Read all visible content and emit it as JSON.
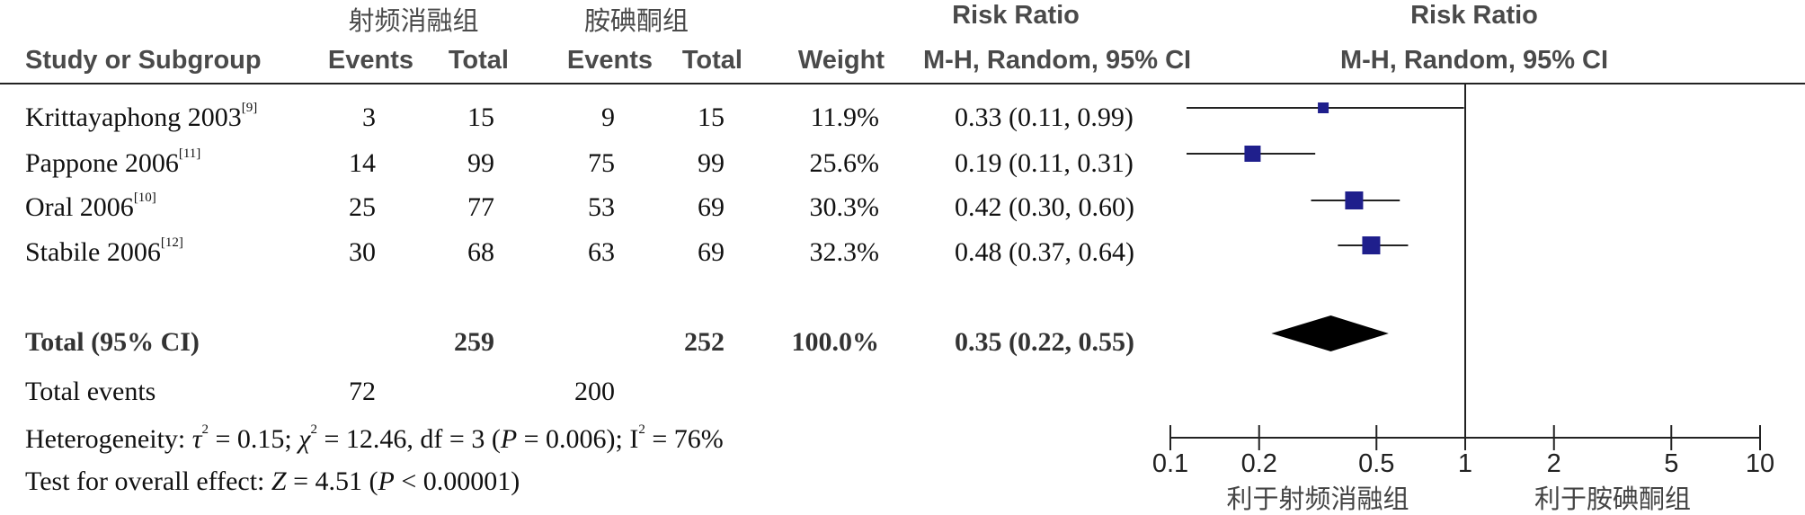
{
  "header": {
    "group1": "射频消融组",
    "group2": "胺碘酮组",
    "risk_ratio": "Risk Ratio",
    "risk_ratio_plot": "Risk Ratio",
    "study_col": "Study or Subgroup",
    "events1": "Events",
    "total1": "Total",
    "events2": "Events",
    "total2": "Total",
    "weight": "Weight",
    "method": "M-H, Random, 95% CI",
    "method_plot": "M-H, Random, 95% CI"
  },
  "studies": [
    {
      "name": "Krittayaphong 2003",
      "ref": "[9]",
      "e1": "3",
      "t1": "15",
      "e2": "9",
      "t2": "15",
      "weight": "11.9%",
      "ci": "0.33 (0.11, 0.99)",
      "rr": 0.33,
      "lo": 0.11,
      "hi": 0.99
    },
    {
      "name": "Pappone 2006",
      "ref": "[11]",
      "e1": "14",
      "t1": "99",
      "e2": "75",
      "t2": "99",
      "weight": "25.6%",
      "ci": "0.19 (0.11, 0.31)",
      "rr": 0.19,
      "lo": 0.11,
      "hi": 0.31
    },
    {
      "name": "Oral 2006",
      "ref": "[10]",
      "e1": "25",
      "t1": "77",
      "e2": "53",
      "t2": "69",
      "weight": "30.3%",
      "ci": "0.42 (0.30, 0.60)",
      "rr": 0.42,
      "lo": 0.3,
      "hi": 0.6
    },
    {
      "name": "Stabile 2006",
      "ref": "[12]",
      "e1": "30",
      "t1": "68",
      "e2": "63",
      "t2": "69",
      "weight": "32.3%",
      "ci": "0.48 (0.37, 0.64)",
      "rr": 0.48,
      "lo": 0.37,
      "hi": 0.64
    }
  ],
  "total": {
    "label": "Total (95% CI)",
    "t1": "259",
    "t2": "252",
    "weight": "100.0%",
    "ci": "0.35 (0.22, 0.55)"
  },
  "total_events": {
    "label": "Total events",
    "e1": "72",
    "e2": "200"
  },
  "heterogeneity": {
    "prefix": "Heterogeneity: ",
    "tau": "τ",
    "tau_rest": " = 0.15; ",
    "chi": "χ",
    "chi_rest": " = 12.46, df = 3 (",
    "p": "P",
    "p_rest": " = 0.006); I",
    "i_rest": " = 76%",
    "sq": "2"
  },
  "overall": {
    "prefix": "Test for overall effect: ",
    "z": "Z",
    "z_rest": " = 4.51 (",
    "p": "P",
    "p_rest": " < 0.00001)"
  },
  "chart_data": {
    "type": "forest",
    "xscale": "log",
    "xlim": [
      0.1,
      10
    ],
    "ticks": [
      0.1,
      0.2,
      0.5,
      1,
      2,
      5,
      10
    ],
    "tick_labels": [
      "0.1",
      "0.2",
      "0.5",
      "1",
      "2",
      "5",
      "10"
    ],
    "favours_left": "利于射频消融组",
    "favours_right": "利于胺碘酮组",
    "pooled": {
      "rr": 0.35,
      "lo": 0.22,
      "hi": 0.55
    },
    "colors": {
      "square": "#1f1f8c",
      "diamond": "#000000",
      "line": "#222222"
    }
  }
}
